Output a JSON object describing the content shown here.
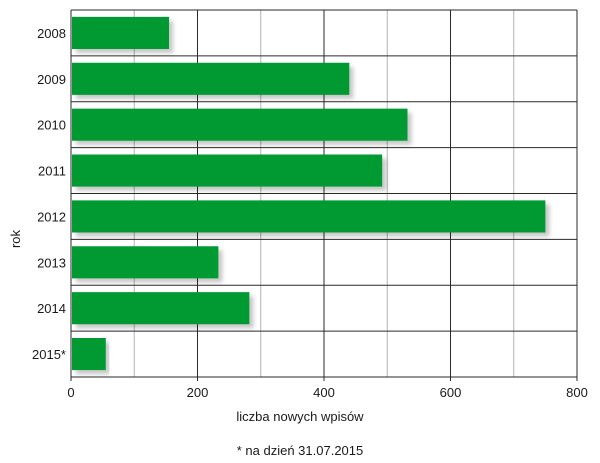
{
  "chart_data": {
    "type": "bar",
    "orientation": "horizontal",
    "categories": [
      "2008",
      "2009",
      "2010",
      "2011",
      "2012",
      "2013",
      "2014",
      "2015*"
    ],
    "values": [
      155,
      440,
      532,
      492,
      750,
      233,
      282,
      55
    ],
    "xlabel": "liczba nowych wpisów",
    "ylabel": "rok",
    "xlim": [
      0,
      800
    ],
    "xticks": [
      0,
      200,
      400,
      600,
      800
    ],
    "grid": true,
    "bar_color": "#009933",
    "note": "* na dzień 31.07.2015"
  }
}
